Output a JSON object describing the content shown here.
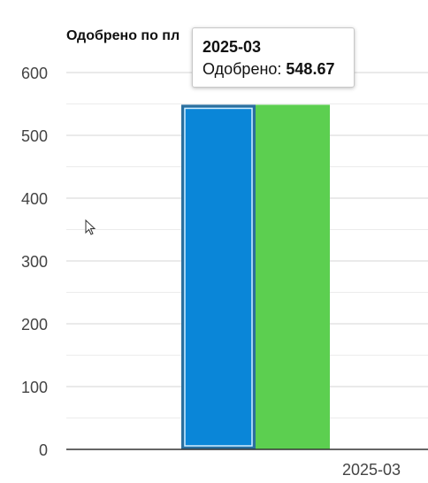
{
  "chart_data": {
    "type": "bar",
    "title": "Одобрено по пл",
    "categories": [
      "2025-03"
    ],
    "series": [
      {
        "values": [
          548.67
        ],
        "color": "#0a86d8"
      },
      {
        "values": [
          548.67
        ],
        "color": "#5ccf50"
      }
    ],
    "y_ticks": [
      0,
      100,
      200,
      300,
      400,
      500,
      600
    ],
    "x_tick_labels": [
      "2025-03"
    ],
    "ylim": [
      0,
      600
    ],
    "grid": true,
    "tooltip": {
      "title": "2025-03",
      "label": "Одобрено: ",
      "value": "548.67"
    }
  }
}
